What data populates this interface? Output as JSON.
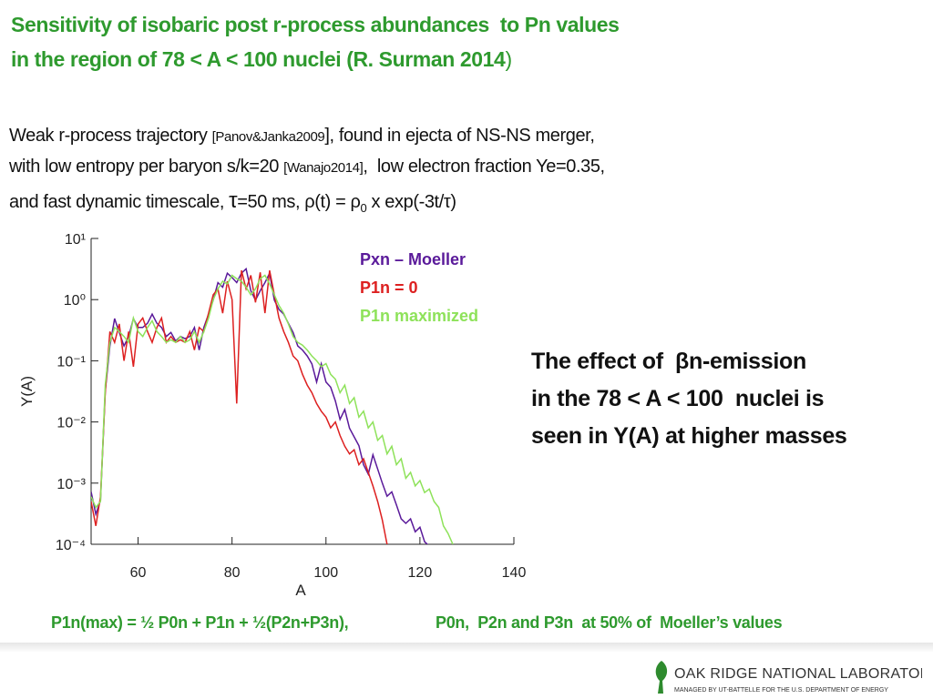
{
  "header": {
    "title": [
      [
        "Sensitivity of isobaric post r-process abundances  to Pn values"
      ],
      [
        "in the region of 78 < A < 100 nuclei (R. Surman 2014",
        ")"
      ]
    ]
  },
  "intro": [
    [
      "Weak r-process trajectory ",
      "[Panov&Janka2009",
      "], found in ejecta of NS-NS merger,"
    ],
    [
      "with low entropy per baryon s/k=20 ",
      "[Wanajo2014]",
      ",  low electron fraction Ye=0.35,"
    ],
    [
      "and fast dynamic timescale, ",
      "τ",
      "=50 ms, ρ(t) = ρ",
      "0",
      " x exp(-3t/τ)"
    ]
  ],
  "chart_data": {
    "type": "line",
    "xlabel": "A",
    "ylabel": "Y(A)",
    "log_y": true,
    "legend": "upper right",
    "xlim": [
      50,
      140
    ],
    "xticks": [
      60,
      80,
      100,
      120,
      140
    ],
    "ylim": [
      0.0001,
      10
    ],
    "yticks": [
      {
        "value": 10,
        "label": "10¹"
      },
      {
        "value": 1,
        "label": "10⁰"
      },
      {
        "value": 0.1,
        "label": "10⁻¹"
      },
      {
        "value": 0.01,
        "label": "10⁻²"
      },
      {
        "value": 0.001,
        "label": "10⁻³"
      },
      {
        "value": 0.0001,
        "label": "10⁻⁴"
      }
    ],
    "x": [
      50,
      51,
      52,
      53,
      54,
      55,
      56,
      57,
      58,
      59,
      60,
      61,
      62,
      63,
      64,
      65,
      66,
      67,
      68,
      69,
      70,
      71,
      72,
      73,
      74,
      75,
      76,
      77,
      78,
      79,
      80,
      81,
      82,
      83,
      84,
      85,
      86,
      87,
      88,
      89,
      90,
      91,
      92,
      93,
      94,
      95,
      96,
      97,
      98,
      99,
      100,
      101,
      102,
      103,
      104,
      105,
      106,
      107,
      108,
      109,
      110,
      111,
      112,
      113,
      114,
      115,
      116,
      117,
      118,
      119,
      120,
      121,
      122,
      123,
      124,
      125,
      126,
      127
    ],
    "series": [
      {
        "name": "Pxn – Moeller",
        "color": "#5a1a9a",
        "values": [
          0.00072,
          0.00031,
          0.00052,
          0.032,
          0.175,
          0.49,
          0.29,
          0.175,
          0.25,
          0.49,
          0.35,
          0.35,
          0.41,
          0.58,
          0.41,
          0.35,
          0.25,
          0.29,
          0.21,
          0.25,
          0.23,
          0.25,
          0.35,
          0.15,
          0.35,
          0.58,
          0.98,
          1.9,
          1.6,
          2.7,
          2.3,
          1.9,
          2.7,
          3.2,
          1.4,
          0.98,
          1.4,
          1.9,
          2.7,
          0.98,
          0.69,
          0.58,
          0.41,
          0.29,
          0.175,
          0.15,
          0.12,
          0.089,
          0.045,
          0.089,
          0.045,
          0.037,
          0.022,
          0.011,
          0.016,
          0.0079,
          0.0057,
          0.0041,
          0.002,
          0.0014,
          0.0029,
          0.0017,
          0.001,
          0.00061,
          0.00072,
          0.00044,
          0.00026,
          0.00022,
          0.00026,
          0.00016,
          0.00019,
          0.00011,
          9.3e-05,
          null,
          null,
          null,
          null,
          null
        ]
      },
      {
        "name": "P1n  = 0",
        "color": "#dd2020",
        "values": [
          0.0005,
          0.0002,
          0.0006,
          0.03,
          0.3,
          0.2,
          0.4,
          0.1,
          0.3,
          0.08,
          0.4,
          0.5,
          0.3,
          0.2,
          0.35,
          0.5,
          0.2,
          0.25,
          0.2,
          0.22,
          0.2,
          0.3,
          0.15,
          0.35,
          0.3,
          0.6,
          1.2,
          1.5,
          0.6,
          2,
          1,
          0.02,
          3,
          1.5,
          2.5,
          0.9,
          2.8,
          0.6,
          3,
          1.2,
          0.5,
          0.3,
          0.2,
          0.12,
          0.1,
          0.06,
          0.04,
          0.03,
          0.02,
          0.015,
          0.012,
          0.008,
          0.01,
          0.006,
          0.004,
          0.003,
          0.0035,
          0.002,
          0.0025,
          0.0015,
          0.0009,
          0.0005,
          0.00025,
          0.0001,
          null,
          null,
          null,
          null,
          null,
          null,
          null,
          null,
          null,
          null,
          null,
          null,
          null,
          null
        ]
      },
      {
        "name": "P1n maximized",
        "color": "#8ee25a",
        "values": [
          0.0006,
          0.0004,
          0.0005,
          0.04,
          0.2,
          0.35,
          0.3,
          0.25,
          0.2,
          0.5,
          0.3,
          0.25,
          0.35,
          0.45,
          0.3,
          0.25,
          0.2,
          0.22,
          0.2,
          0.25,
          0.2,
          0.22,
          0.3,
          0.2,
          0.3,
          0.5,
          1,
          1.5,
          2,
          1.8,
          2.5,
          2.2,
          2,
          1.6,
          1.2,
          1.5,
          2.2,
          2.5,
          1.8,
          1.2,
          0.8,
          0.6,
          0.4,
          0.25,
          0.2,
          0.18,
          0.15,
          0.12,
          0.1,
          0.08,
          0.09,
          0.06,
          0.05,
          0.03,
          0.04,
          0.02,
          0.025,
          0.012,
          0.015,
          0.008,
          0.01,
          0.005,
          0.006,
          0.003,
          0.004,
          0.002,
          0.0025,
          0.0012,
          0.0015,
          0.0009,
          0.0011,
          0.0007,
          0.0008,
          0.0005,
          0.0004,
          0.0002,
          0.00015,
          0.0001
        ]
      }
    ]
  },
  "side_text": [
    "The effect of  βn-emission",
    "in the 78 < A < 100  nuclei is",
    "seen in Y(A) at higher masses"
  ],
  "formula": [
    "P1n(max) = ½ P0n + P1n + ½(P2n+P3n),",
    "P0n,  P2n and P3n  at 50% of  Moeller’s values"
  ],
  "footer": {
    "lab": "OAK RIDGE NATIONAL LABORATORY",
    "managed": "MANAGED BY UT-BATTELLE FOR THE U.S. DEPARTMENT OF ENERGY"
  }
}
